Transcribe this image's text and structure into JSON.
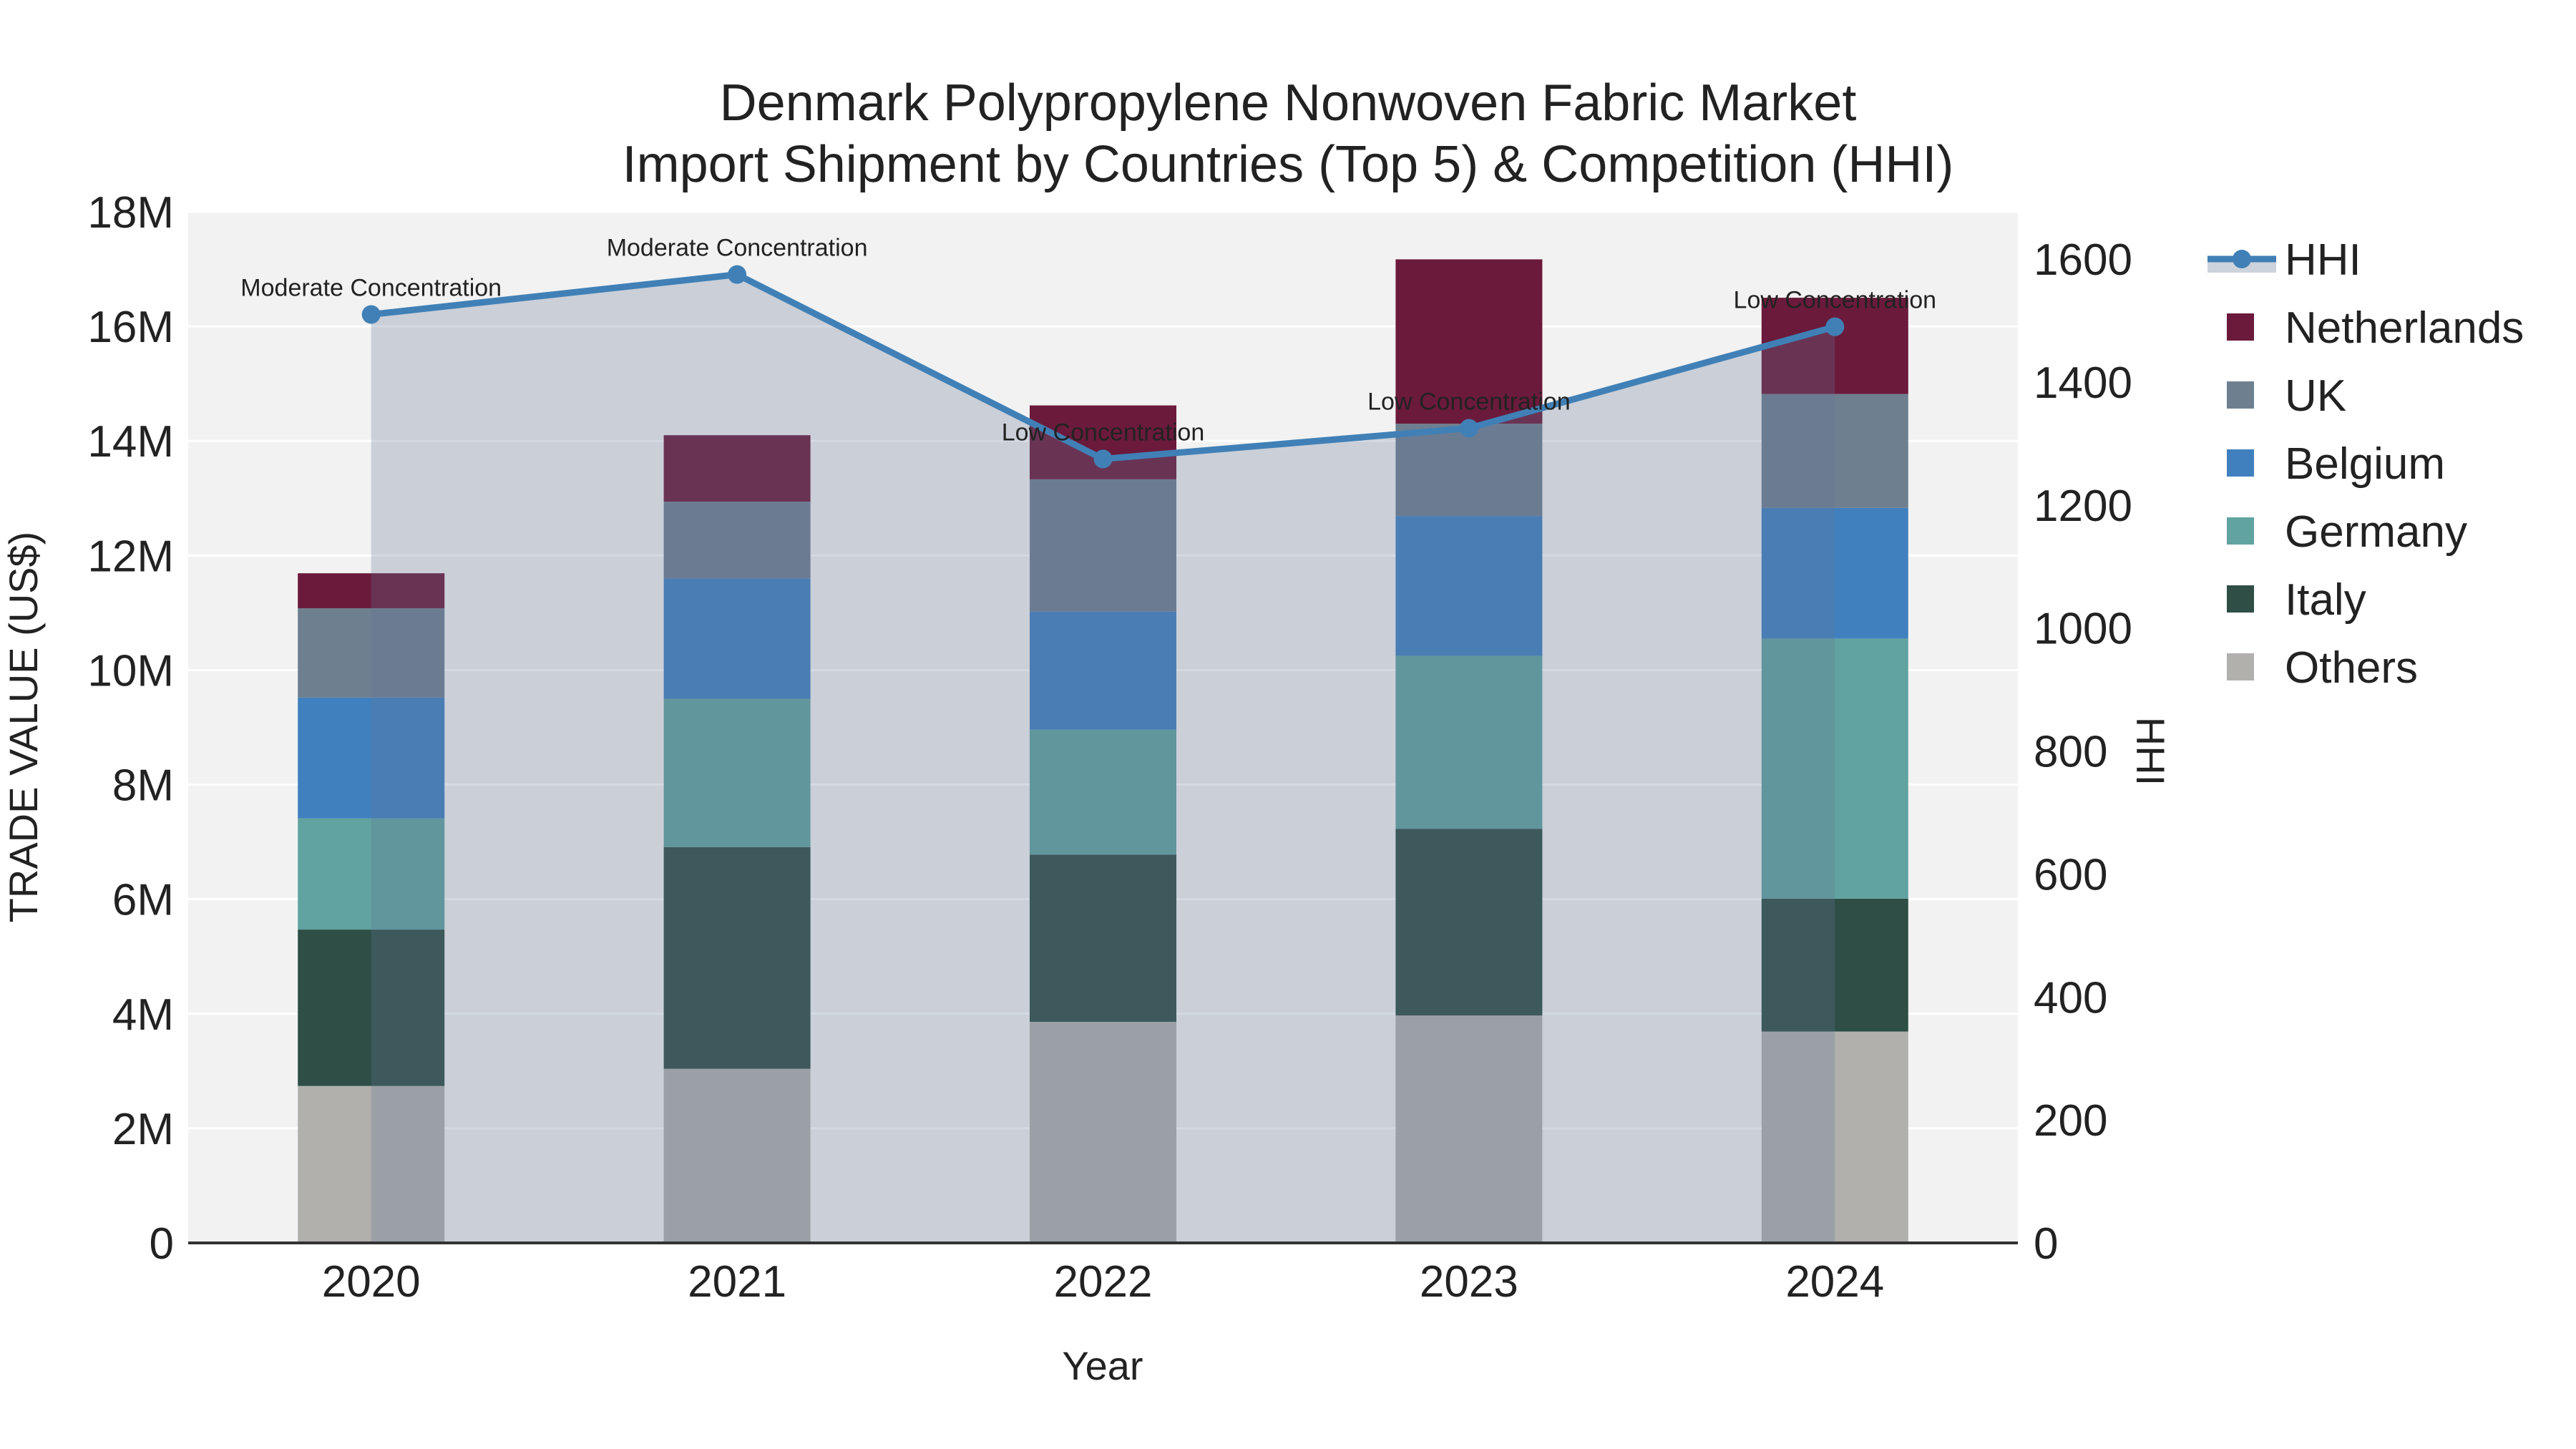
{
  "title": {
    "line1": "Denmark Polypropylene Nonwoven Fabric Market",
    "line2": "Import Shipment by Countries (Top 5) & Competition (HHI)"
  },
  "axes": {
    "x": {
      "title": "Year",
      "categories": [
        "2020",
        "2021",
        "2022",
        "2023",
        "2024"
      ]
    },
    "y_left": {
      "title": "TRADE VALUE (US$)",
      "tick_labels": [
        "0",
        "2M",
        "4M",
        "6M",
        "8M",
        "10M",
        "12M",
        "14M",
        "16M",
        "18M"
      ],
      "min": 0,
      "max_usd": 18000000
    },
    "y_right": {
      "title": "HHI",
      "tick_labels": [
        "0",
        "200",
        "400",
        "600",
        "800",
        "1000",
        "1200",
        "1400",
        "1600"
      ],
      "min": 0,
      "max_hhi": 1677
    }
  },
  "legend": {
    "items": [
      {
        "label": "HHI",
        "type": "line",
        "color": "#4080b6"
      },
      {
        "label": "Netherlands",
        "type": "square",
        "color": "#6b1a3b"
      },
      {
        "label": "UK",
        "type": "square",
        "color": "#6e7f90"
      },
      {
        "label": "Belgium",
        "type": "square",
        "color": "#4180bf"
      },
      {
        "label": "Germany",
        "type": "square",
        "color": "#60a3a0"
      },
      {
        "label": "Italy",
        "type": "square",
        "color": "#2e4e46"
      },
      {
        "label": "Others",
        "type": "square",
        "color": "#b1b0ad"
      }
    ]
  },
  "colors": {
    "plot_background": "#f2f2f2",
    "gridline": "#ffffff",
    "axis_line": "#333333",
    "hhi_line": "#4080b6",
    "hhi_fill": "rgba(100,120,150,0.28)",
    "legend_band": "#ccd3dc",
    "netherlands": "#6b1a3b",
    "uk": "#6e7f90",
    "belgium": "#4180bf",
    "germany": "#60a3a0",
    "italy": "#2e4e46",
    "others": "#b1b0ad"
  },
  "chart_data": {
    "type": "bar+line",
    "title": "Denmark Polypropylene Nonwoven Fabric Market — Import Shipment by Countries (Top 5) & Competition (HHI)",
    "categories": [
      "2020",
      "2021",
      "2022",
      "2023",
      "2024"
    ],
    "bar_unit": "million US$",
    "stack_order_bottom_to_top": [
      "Others",
      "Italy",
      "Germany",
      "Belgium",
      "UK",
      "Netherlands"
    ],
    "series": [
      {
        "name": "Others",
        "color_key": "others",
        "values": [
          2.74,
          3.04,
          3.86,
          3.97,
          3.69
        ]
      },
      {
        "name": "Italy",
        "color_key": "italy",
        "values": [
          2.73,
          3.87,
          2.92,
          3.26,
          2.32
        ]
      },
      {
        "name": "Germany",
        "color_key": "germany",
        "values": [
          1.94,
          2.59,
          2.18,
          3.02,
          4.54
        ]
      },
      {
        "name": "Belgium",
        "color_key": "belgium",
        "values": [
          2.11,
          2.1,
          2.06,
          2.44,
          2.28
        ]
      },
      {
        "name": "UK",
        "color_key": "uk",
        "values": [
          1.56,
          1.34,
          2.31,
          1.61,
          1.99
        ]
      },
      {
        "name": "Netherlands",
        "color_key": "netherlands",
        "values": [
          0.61,
          1.16,
          1.29,
          2.87,
          1.68
        ]
      }
    ],
    "bar_totals_musd": [
      11.69,
      14.1,
      14.62,
      17.17,
      16.5
    ],
    "line_series": {
      "name": "HHI",
      "color_key": "hhi_line",
      "values": [
        1510,
        1575,
        1275,
        1325,
        1490
      ],
      "fill": "tozero"
    },
    "annotations": [
      {
        "x": "2020",
        "text": "Moderate Concentration"
      },
      {
        "x": "2021",
        "text": "Moderate Concentration"
      },
      {
        "x": "2022",
        "text": "Low Concentration"
      },
      {
        "x": "2023",
        "text": "Low Concentration"
      },
      {
        "x": "2024",
        "text": "Low Concentration"
      }
    ],
    "xlabel": "Year",
    "ylabel_left": "TRADE VALUE (US$)",
    "ylabel_right": "HHI",
    "ylim_left_usd": [
      0,
      18000000
    ],
    "ylim_right_hhi": [
      0,
      1677
    ],
    "grid": true,
    "legend_position": "right"
  }
}
